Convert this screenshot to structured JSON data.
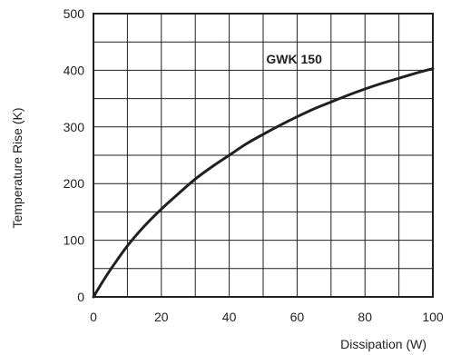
{
  "chart_data": {
    "type": "line",
    "xlabel": "Dissipation (W)",
    "ylabel": "Temperature Rise (K)",
    "xlim": [
      0,
      100
    ],
    "ylim": [
      0,
      500
    ],
    "x_ticks": [
      0,
      20,
      40,
      60,
      80,
      100
    ],
    "y_ticks": [
      0,
      100,
      200,
      300,
      400,
      500
    ],
    "x_grid_step": 10,
    "y_grid_step": 50,
    "grid": true,
    "annotations": [
      {
        "text": "GWK 150",
        "x": 60,
        "y": 420
      }
    ],
    "series": [
      {
        "x": [
          0,
          2,
          5,
          10,
          15,
          20,
          25,
          30,
          35,
          40,
          45,
          50,
          55,
          60,
          65,
          70,
          75,
          80,
          85,
          90,
          95,
          100
        ],
        "y": [
          0,
          20,
          48,
          90,
          125,
          155,
          182,
          208,
          230,
          250,
          270,
          287,
          303,
          318,
          332,
          344,
          356,
          367,
          377,
          386,
          395,
          403
        ]
      }
    ]
  }
}
